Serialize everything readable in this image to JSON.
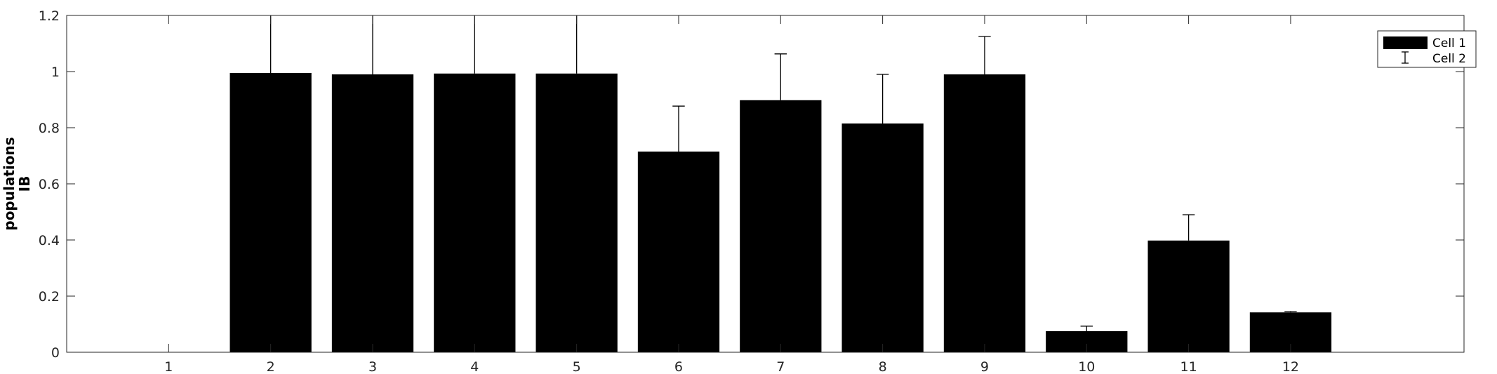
{
  "chart_data": {
    "type": "bar",
    "title": "",
    "xlabel": "",
    "ylabel_lines": [
      "populations",
      "IB"
    ],
    "categories": [
      "1",
      "2",
      "3",
      "4",
      "5",
      "6",
      "7",
      "8",
      "9",
      "10",
      "11",
      "12"
    ],
    "xlim": [
      0,
      13.7
    ],
    "ylim": [
      0,
      1.2
    ],
    "yticks": [
      0,
      0.2,
      0.4,
      0.6,
      0.8,
      1,
      1.2
    ],
    "ytick_labels": [
      "0",
      "0.2",
      "0.4",
      "0.6",
      "0.8",
      "1",
      "1.2"
    ],
    "grid": false,
    "legend_position": "top-right",
    "series": [
      {
        "name": "Cell 1",
        "kind": "bar",
        "color": "#000000",
        "values": [
          0,
          0.995,
          0.99,
          0.993,
          0.993,
          0.715,
          0.898,
          0.815,
          0.99,
          0.075,
          0.398,
          0.142
        ]
      },
      {
        "name": "Cell 2",
        "kind": "errorbar",
        "color": "#000000",
        "errors": [
          0,
          0.3,
          0.3,
          0.3,
          0.3,
          0.162,
          0.165,
          0.175,
          0.135,
          0.018,
          0.092,
          0.003
        ]
      }
    ]
  }
}
